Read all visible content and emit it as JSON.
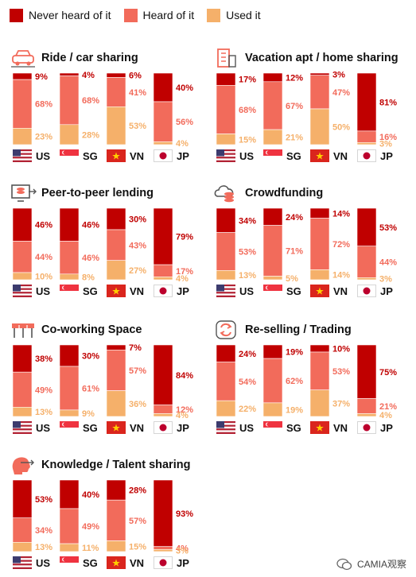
{
  "legend": [
    {
      "label": "Never heard of it",
      "color": "#c00000"
    },
    {
      "label": "Heard of it",
      "color": "#f26b5b"
    },
    {
      "label": "Used it",
      "color": "#f5b06a"
    }
  ],
  "countries": [
    "US",
    "SG",
    "VN",
    "JP"
  ],
  "attribution": "CAMIA观察",
  "chart_data": [
    {
      "type": "bar",
      "title": "Ride / car sharing",
      "icon": "car-icon",
      "categories": [
        "US",
        "SG",
        "VN",
        "JP"
      ],
      "series": [
        {
          "name": "Never heard of it",
          "values": [
            9,
            4,
            6,
            40
          ]
        },
        {
          "name": "Heard of it",
          "values": [
            68,
            68,
            41,
            56
          ]
        },
        {
          "name": "Used it",
          "values": [
            23,
            28,
            53,
            4
          ]
        }
      ],
      "ylim": [
        0,
        100
      ]
    },
    {
      "type": "bar",
      "title": "Vacation apt / home sharing",
      "icon": "building-icon",
      "categories": [
        "US",
        "SG",
        "VN",
        "JP"
      ],
      "series": [
        {
          "name": "Never heard of it",
          "values": [
            17,
            12,
            3,
            81
          ]
        },
        {
          "name": "Heard of it",
          "values": [
            68,
            67,
            47,
            16
          ]
        },
        {
          "name": "Used it",
          "values": [
            15,
            21,
            50,
            3
          ]
        }
      ],
      "ylim": [
        0,
        100
      ]
    },
    {
      "type": "bar",
      "title": "Peer-to-peer lending",
      "icon": "monitor-coins-icon",
      "categories": [
        "US",
        "SG",
        "VN",
        "JP"
      ],
      "series": [
        {
          "name": "Never heard of it",
          "values": [
            46,
            46,
            30,
            79
          ]
        },
        {
          "name": "Heard of it",
          "values": [
            44,
            46,
            43,
            17
          ]
        },
        {
          "name": "Used it",
          "values": [
            10,
            8,
            27,
            4
          ]
        }
      ],
      "ylim": [
        0,
        100
      ]
    },
    {
      "type": "bar",
      "title": "Crowdfunding",
      "icon": "cloud-coins-icon",
      "categories": [
        "US",
        "SG",
        "VN",
        "JP"
      ],
      "series": [
        {
          "name": "Never heard of it",
          "values": [
            34,
            24,
            14,
            53
          ]
        },
        {
          "name": "Heard of it",
          "values": [
            53,
            71,
            72,
            44
          ]
        },
        {
          "name": "Used it",
          "values": [
            13,
            5,
            14,
            3
          ]
        }
      ],
      "ylim": [
        0,
        100
      ]
    },
    {
      "type": "bar",
      "title": "Co-working Space",
      "icon": "desks-icon",
      "categories": [
        "US",
        "SG",
        "VN",
        "JP"
      ],
      "series": [
        {
          "name": "Never heard of it",
          "values": [
            38,
            30,
            7,
            84
          ]
        },
        {
          "name": "Heard of it",
          "values": [
            49,
            61,
            57,
            12
          ]
        },
        {
          "name": "Used it",
          "values": [
            13,
            9,
            36,
            4
          ]
        }
      ],
      "ylim": [
        0,
        100
      ]
    },
    {
      "type": "bar",
      "title": "Re-selling / Trading",
      "icon": "exchange-icon",
      "categories": [
        "US",
        "SG",
        "VN",
        "JP"
      ],
      "series": [
        {
          "name": "Never heard of it",
          "values": [
            24,
            19,
            10,
            75
          ]
        },
        {
          "name": "Heard of it",
          "values": [
            54,
            62,
            53,
            21
          ]
        },
        {
          "name": "Used it",
          "values": [
            22,
            19,
            37,
            4
          ]
        }
      ],
      "ylim": [
        0,
        100
      ]
    },
    {
      "type": "bar",
      "title": "Knowledge / Talent sharing",
      "icon": "head-icon",
      "categories": [
        "US",
        "SG",
        "VN",
        "JP"
      ],
      "series": [
        {
          "name": "Never heard of it",
          "values": [
            53,
            40,
            28,
            93
          ]
        },
        {
          "name": "Heard of it",
          "values": [
            34,
            49,
            57,
            4
          ]
        },
        {
          "name": "Used it",
          "values": [
            13,
            11,
            15,
            3
          ]
        }
      ],
      "ylim": [
        0,
        100
      ]
    }
  ]
}
